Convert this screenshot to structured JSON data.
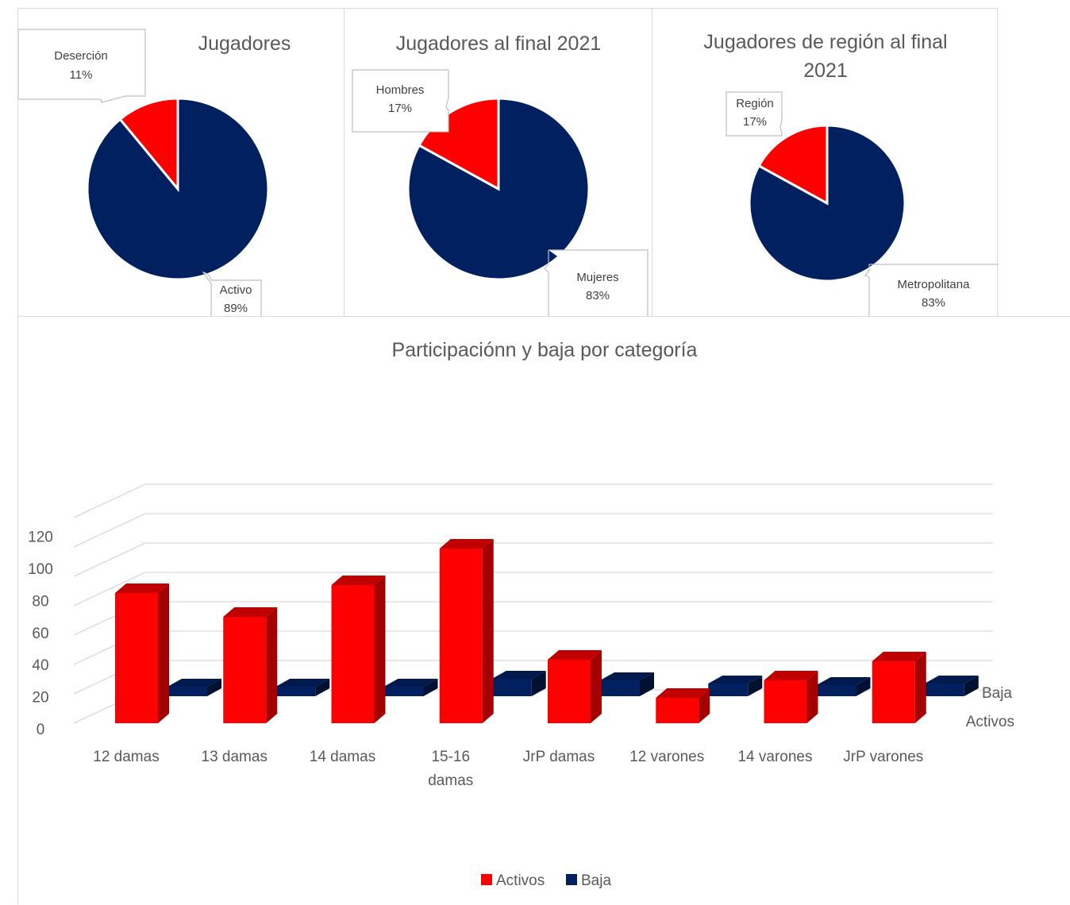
{
  "colors": {
    "red": "#ff0000",
    "red_dark": "#a50000",
    "red_top": "#c00000",
    "navy": "#002060",
    "navy_dark": "#001030",
    "navy_top": "#001a4d"
  },
  "chart_data": [
    {
      "type": "pie",
      "title": "Jugadores",
      "slices": [
        {
          "name": "Deserción",
          "value": 11,
          "label": "11%",
          "color": "#ff0000"
        },
        {
          "name": "Activo",
          "value": 89,
          "label": "89%",
          "color": "#002060"
        }
      ]
    },
    {
      "type": "pie",
      "title": "Jugadores al final 2021",
      "slices": [
        {
          "name": "Hombres",
          "value": 17,
          "label": "17%",
          "color": "#ff0000"
        },
        {
          "name": "Mujeres",
          "value": 83,
          "label": "83%",
          "color": "#002060"
        }
      ]
    },
    {
      "type": "pie",
      "title_lines": [
        "Jugadores de región al final",
        "2021"
      ],
      "slices": [
        {
          "name": "Región",
          "value": 17,
          "label": "17%",
          "color": "#ff0000"
        },
        {
          "name": "Metropolitana",
          "value": 83,
          "label": "83%",
          "color": "#002060"
        }
      ]
    },
    {
      "type": "bar",
      "subtype": "3d-column",
      "title": "Participaciónn y baja por categoría",
      "categories": [
        [
          "12 damas"
        ],
        [
          "13 damas"
        ],
        [
          "14 damas"
        ],
        [
          "15-16",
          "damas"
        ],
        [
          "JrP damas"
        ],
        [
          "12 varones"
        ],
        [
          "14 varones"
        ],
        [
          "JrP varones"
        ]
      ],
      "series": [
        {
          "name": "Activos",
          "values": [
            82,
            67,
            87,
            110,
            40,
            16,
            27,
            39
          ],
          "color": "#ff0000"
        },
        {
          "name": "Baja",
          "values": [
            6,
            6,
            6,
            11,
            10,
            8,
            7,
            8
          ],
          "color": "#002060"
        }
      ],
      "y_ticks": [
        "0",
        "20",
        "40",
        "60",
        "80",
        "100",
        "120"
      ],
      "ylim": [
        0,
        140
      ],
      "depth_labels": [
        "Baja",
        "Activos"
      ],
      "legend_position": "bottom"
    }
  ]
}
